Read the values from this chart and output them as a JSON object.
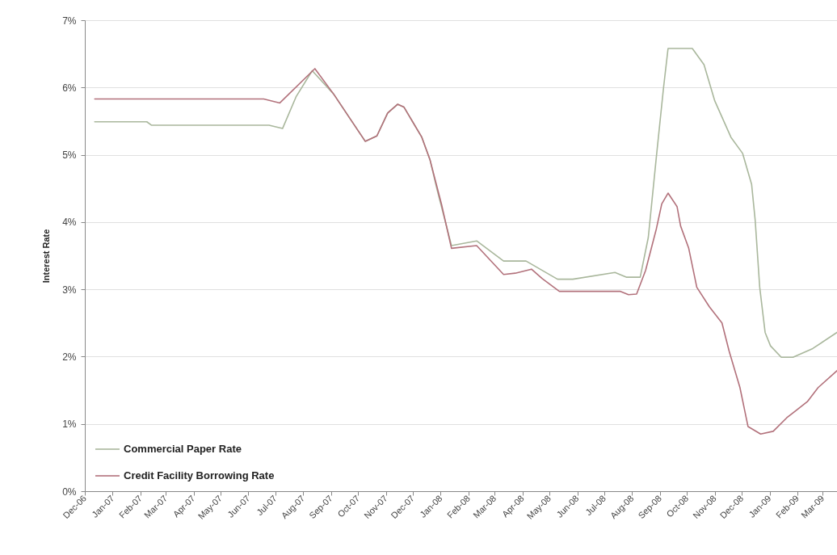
{
  "chart_data": {
    "type": "line",
    "ylabel": "Interest Rate",
    "xlim": [
      "2006-12-01",
      "2009-03-17"
    ],
    "ylim": [
      0,
      7
    ],
    "xticks": [
      {
        "value": "2006-12-01",
        "label": "Dec-06"
      },
      {
        "value": "2007-01-01",
        "label": "Jan-07"
      },
      {
        "value": "2007-02-01",
        "label": "Feb-07"
      },
      {
        "value": "2007-03-01",
        "label": "Mar-07"
      },
      {
        "value": "2007-04-01",
        "label": "Apr-07"
      },
      {
        "value": "2007-05-01",
        "label": "May-07"
      },
      {
        "value": "2007-06-01",
        "label": "Jun-07"
      },
      {
        "value": "2007-07-01",
        "label": "Jul-07"
      },
      {
        "value": "2007-08-01",
        "label": "Aug-07"
      },
      {
        "value": "2007-09-01",
        "label": "Sep-07"
      },
      {
        "value": "2007-10-01",
        "label": "Oct-07"
      },
      {
        "value": "2007-11-01",
        "label": "Nov-07"
      },
      {
        "value": "2007-12-01",
        "label": "Dec-07"
      },
      {
        "value": "2008-01-01",
        "label": "Jan-08"
      },
      {
        "value": "2008-02-01",
        "label": "Feb-08"
      },
      {
        "value": "2008-03-01",
        "label": "Mar-08"
      },
      {
        "value": "2008-04-01",
        "label": "Apr-08"
      },
      {
        "value": "2008-05-01",
        "label": "May-08"
      },
      {
        "value": "2008-06-01",
        "label": "Jun-08"
      },
      {
        "value": "2008-07-01",
        "label": "Jul-08"
      },
      {
        "value": "2008-08-01",
        "label": "Aug-08"
      },
      {
        "value": "2008-09-01",
        "label": "Sep-08"
      },
      {
        "value": "2008-10-01",
        "label": "Oct-08"
      },
      {
        "value": "2008-11-01",
        "label": "Nov-08"
      },
      {
        "value": "2008-12-01",
        "label": "Dec-08"
      },
      {
        "value": "2009-01-01",
        "label": "Jan-09"
      },
      {
        "value": "2009-02-01",
        "label": "Feb-09"
      },
      {
        "value": "2009-03-01",
        "label": "Mar-09"
      }
    ],
    "yticks": [
      {
        "value": 0,
        "label": "0%"
      },
      {
        "value": 1,
        "label": "1%"
      },
      {
        "value": 2,
        "label": "2%"
      },
      {
        "value": 3,
        "label": "3%"
      },
      {
        "value": 4,
        "label": "4%"
      },
      {
        "value": 5,
        "label": "5%"
      },
      {
        "value": 6,
        "label": "6%"
      },
      {
        "value": 7,
        "label": "7%"
      }
    ],
    "grid": "y",
    "legend": "bottom left",
    "series": [
      {
        "name": "Commercial Paper Rate",
        "color": "#a9b79c",
        "x": [
          "2006-12-12",
          "2007-02-08",
          "2007-02-13",
          "2007-06-24",
          "2007-07-09",
          "2007-07-24",
          "2007-08-11",
          "2007-09-04",
          "2007-09-22",
          "2007-10-09",
          "2007-10-22",
          "2007-11-03",
          "2007-11-14",
          "2007-11-21",
          "2007-12-11",
          "2007-12-20",
          "2007-12-28",
          "2008-01-13",
          "2008-02-10",
          "2008-03-11",
          "2008-04-05",
          "2008-05-10",
          "2008-05-27",
          "2008-07-13",
          "2008-07-26",
          "2008-08-10",
          "2008-08-19",
          "2008-08-28",
          "2008-09-05",
          "2008-09-10",
          "2008-10-07",
          "2008-10-20",
          "2008-11-01",
          "2008-11-19",
          "2008-12-02",
          "2008-12-12",
          "2008-12-16",
          "2008-12-21",
          "2008-12-27",
          "2009-01-02",
          "2009-01-14",
          "2009-01-27",
          "2009-02-18",
          "2009-03-17"
        ],
        "values": [
          5.49,
          5.49,
          5.44,
          5.44,
          5.39,
          5.86,
          6.25,
          5.9,
          5.54,
          5.2,
          5.28,
          5.62,
          5.75,
          5.71,
          5.26,
          4.93,
          4.48,
          3.65,
          3.72,
          3.42,
          3.42,
          3.15,
          3.15,
          3.25,
          3.18,
          3.18,
          3.77,
          4.97,
          6.0,
          6.58,
          6.58,
          6.34,
          5.8,
          5.26,
          5.02,
          4.56,
          4.02,
          3.03,
          2.36,
          2.16,
          1.99,
          1.99,
          2.12,
          2.36
        ]
      },
      {
        "name": "Credit Facility Borrowing Rate",
        "color": "#b2717b",
        "x": [
          "2006-12-12",
          "2007-06-18",
          "2007-07-06",
          "2007-08-14",
          "2007-09-04",
          "2007-09-22",
          "2007-10-09",
          "2007-10-22",
          "2007-11-03",
          "2007-11-14",
          "2007-11-21",
          "2007-12-11",
          "2007-12-20",
          "2008-01-02",
          "2008-01-13",
          "2008-02-10",
          "2008-03-11",
          "2008-03-24",
          "2008-04-11",
          "2008-04-23",
          "2008-05-12",
          "2008-07-19",
          "2008-07-28",
          "2008-08-06",
          "2008-08-16",
          "2008-08-28",
          "2008-09-03",
          "2008-09-10",
          "2008-09-20",
          "2008-09-24",
          "2008-10-03",
          "2008-10-12",
          "2008-10-26",
          "2008-11-09",
          "2008-11-17",
          "2008-11-29",
          "2008-12-08",
          "2008-12-22",
          "2009-01-05",
          "2009-01-20",
          "2009-02-12",
          "2009-02-24",
          "2009-03-17"
        ],
        "values": [
          5.83,
          5.83,
          5.77,
          6.28,
          5.9,
          5.54,
          5.2,
          5.28,
          5.62,
          5.75,
          5.71,
          5.26,
          4.93,
          4.26,
          3.61,
          3.65,
          3.22,
          3.24,
          3.3,
          3.16,
          2.97,
          2.97,
          2.92,
          2.93,
          3.28,
          3.9,
          4.27,
          4.43,
          4.23,
          3.94,
          3.61,
          3.03,
          2.74,
          2.5,
          2.08,
          1.54,
          0.96,
          0.85,
          0.89,
          1.09,
          1.33,
          1.54,
          1.79
        ]
      }
    ]
  }
}
